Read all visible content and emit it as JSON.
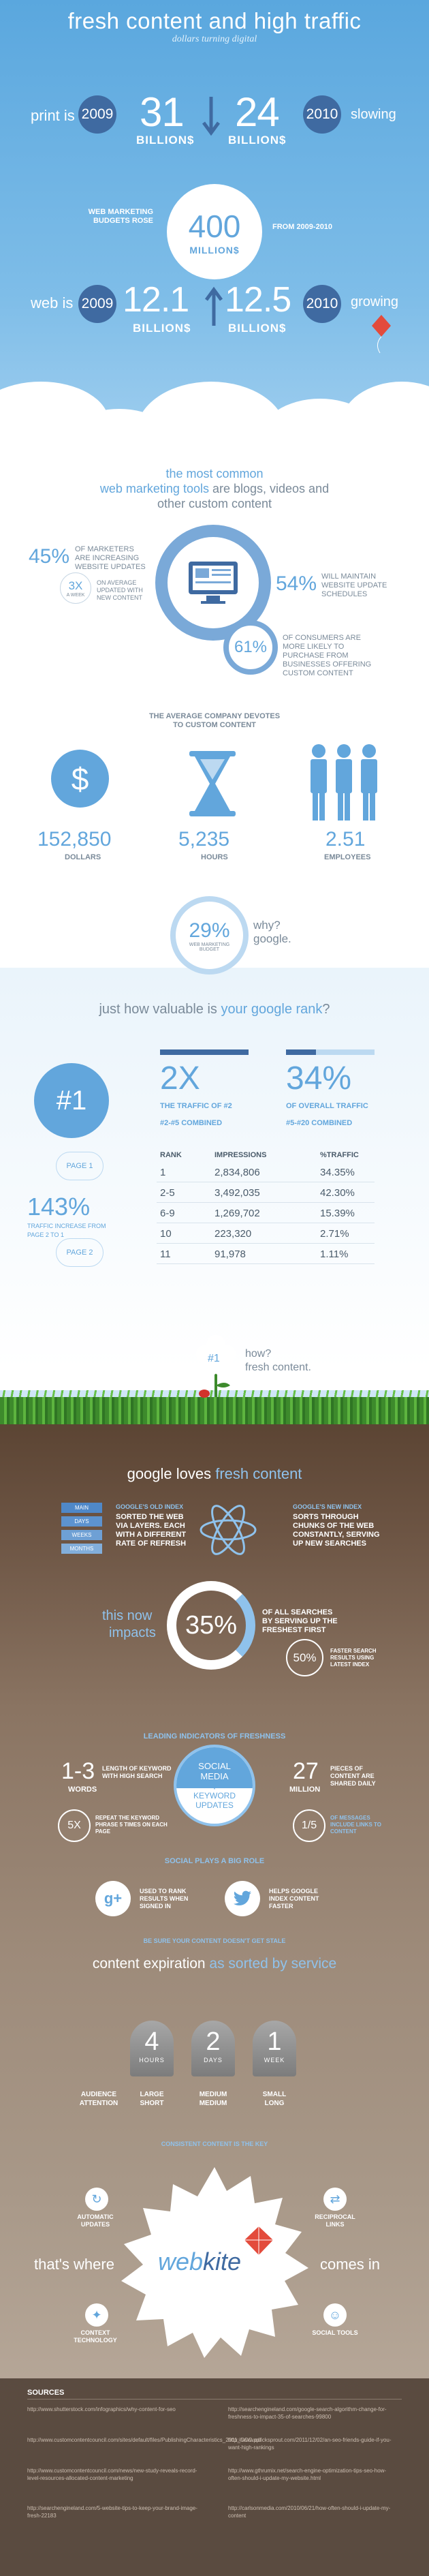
{
  "header": {
    "title": "fresh content and high traffic",
    "subtitle": "dollars turning digital"
  },
  "print": {
    "label": "print is",
    "year_from": "2009",
    "value_from": "31",
    "unit_from": "BILLION$",
    "value_to": "24",
    "unit_to": "BILLION$",
    "year_to": "2010",
    "trend": "slowing"
  },
  "budget": {
    "label": "WEB MARKETING BUDGETS ROSE",
    "value": "400",
    "unit": "MILLION$",
    "period": "FROM 2009-2010"
  },
  "web": {
    "label": "web is",
    "year_from": "2009",
    "value_from": "12.1",
    "unit_from": "BILLION$",
    "value_to": "12.5",
    "unit_to": "BILLION$",
    "year_to": "2010",
    "trend": "growing"
  },
  "tools": {
    "line1_pre": "the most common",
    "line2_hl": "web marketing tools",
    "line2_post": " are blogs, videos and",
    "line3": "other custom content"
  },
  "stats": {
    "s1_value": "45%",
    "s1_label": "OF MARKETERS ARE INCREASING WEBSITE UPDATES",
    "s2_value": "3X",
    "s2_unit": "A WEEK",
    "s2_label": "ON AVERAGE UPDATED WITH NEW CONTENT",
    "s3_value": "54%",
    "s3_label": "WILL MAINTAIN WEBSITE UPDATE SCHEDULES",
    "s4_value": "61%",
    "s4_label": "OF CONSUMERS ARE MORE LIKELY TO PURCHASE FROM BUSINESSES OFFERING CUSTOM CONTENT"
  },
  "devotes": {
    "heading": "THE AVERAGE COMPANY DEVOTES TO CUSTOM CONTENT",
    "dollars_value": "152,850",
    "dollars_label": "DOLLARS",
    "hours_value": "5,235",
    "hours_label": "HOURS",
    "employees_value": "2.51",
    "employees_label": "EMPLOYEES"
  },
  "budget_pct": {
    "value": "29%",
    "label": "WEB MARKETING BUDGET",
    "why": "why?",
    "google": "google."
  },
  "rank": {
    "question_pre": "just how valuable is ",
    "question_hl": "your google rank",
    "question_post": "?",
    "number_one": "#1",
    "twox_value": "2X",
    "twox_label_a": "THE TRAFFIC OF #2",
    "twox_label_b": "#2-#5 COMBINED",
    "pct_value": "34%",
    "pct_label_a": "OF OVERALL TRAFFIC",
    "pct_label_b": "#5-#20 COMBINED",
    "col_rank": "RANK",
    "col_impressions": "IMPRESSIONS",
    "col_traffic": "%TRAFFIC",
    "rows": [
      {
        "rank": "1",
        "impressions": "2,834,806",
        "traffic": "34.35%"
      },
      {
        "rank": "2-5",
        "impressions": "3,492,035",
        "traffic": "42.30%"
      },
      {
        "rank": "6-9",
        "impressions": "1,269,702",
        "traffic": "15.39%"
      },
      {
        "rank": "10",
        "impressions": "223,320",
        "traffic": "2.71%"
      },
      {
        "rank": "11",
        "impressions": "91,978",
        "traffic": "1.11%"
      }
    ],
    "page1": "PAGE 1",
    "page2": "PAGE 2",
    "increase_value": "143%",
    "increase_label": "TRAFFIC INCREASE FROM PAGE 2 TO 1",
    "fresh_num": "#1",
    "how": "how?",
    "fresh_content": "fresh content."
  },
  "loves": {
    "pre": "google loves ",
    "hl": "fresh content",
    "old_title": "GOOGLE'S OLD INDEX",
    "old_text": "SORTED THE WEB VIA LAYERS. EACH WITH A DIFFERENT RATE OF REFRESH",
    "new_title": "GOOGLE'S NEW INDEX",
    "new_text": "SORTS THROUGH CHUNKS OF THE WEB CONSTANTLY, SERVING UP NEW SEARCHES",
    "layers": [
      "MAIN",
      "DAYS",
      "WEEKS",
      "MONTHS"
    ],
    "impact_a": "this now",
    "impact_b": "impacts",
    "impact_value": "35%",
    "impact_label": "OF ALL SEARCHES BY SERVING UP THE FRESHEST FIRST",
    "faster_value": "50%",
    "faster_label": "FASTER SEARCH RESULTS USING LATEST INDEX"
  },
  "freshness": {
    "heading": "LEADING INDICATORS OF FRESHNESS",
    "words_value": "1-3",
    "words_unit": "WORDS",
    "words_label": "LENGTH OF KEYWORD WITH HIGH SEARCH",
    "social_a": "SOCIAL",
    "social_b": "MEDIA",
    "plus": "+",
    "keyword_a": "KEYWORD",
    "keyword_b": "UPDATES",
    "million_value": "27",
    "million_unit": "MILLION",
    "million_label": "PIECES OF CONTENT ARE SHARED DAILY",
    "fivex_value": "5X",
    "fivex_label": "REPEAT THE KEYWORD PHRASE 5 TIMES ON EACH PAGE",
    "fifth_value": "1/5",
    "fifth_label": "OF MESSAGES INCLUDE LINKS TO CONTENT"
  },
  "social": {
    "heading": "SOCIAL PLAYS A BIG ROLE",
    "gplus_label": "USED TO RANK RESULTS WHEN SIGNED IN",
    "twitter_label": "HELPS GOOGLE INDEX CONTENT FASTER",
    "stale": "BE SURE YOUR CONTENT DOESN'T GET STALE"
  },
  "expiration": {
    "pre": "content expiration ",
    "hl": "as sorted by service",
    "tombs": [
      {
        "n": "4",
        "u": "HOURS",
        "a": "AUDIENCE",
        "b": "ATTENTION"
      },
      {
        "n": "2",
        "u": "DAYS",
        "a": "LARGE",
        "b": "SHORT"
      },
      {
        "n": "1",
        "u": "WEEK",
        "a": "MEDIUM",
        "b": "MEDIUM"
      },
      {
        "n": "",
        "u": "",
        "a": "SMALL",
        "b": "LONG"
      }
    ],
    "key": "CONSISTENT CONTENT IS THE KEY"
  },
  "webkite": {
    "thats_where": "that's where",
    "brand_a": "web",
    "brand_b": "kite",
    "comes_in": "comes in",
    "auto": "AUTOMATIC UPDATES",
    "links": "RECIPROCAL LINKS",
    "context": "CONTEXT TECHNOLOGY",
    "tools": "SOCIAL TOOLS"
  },
  "sources": {
    "heading": "SOURCES",
    "items": [
      "http://www.shutterstock.com/infographics/why-content-for-seo",
      "http://searchengineland.com/google-search-algorithm-change-for-freshness-to-impact-35-of-searches-99800",
      "http://www.customcontentcouncil.com/sites/default/files/PublishingCharacteristics_2011_CCC.pdf",
      "http://www.quicksprout.com/2011/12/02/an-seo-friends-guide-if-you-want-high-rankings",
      "http://www.customcontentcouncil.com/news/new-study-reveals-record-level-resources-allocated-content-marketing",
      "http://www.gthrumix.net/search-engine-optimization-tips-seo-how-often-should-i-update-my-website.html",
      "http://searchengineland.com/5-website-tips-to-keep-your-brand-image-fresh-22183",
      "http://carlsonmedia.com/2010/06/21/how-often-should-i-update-my-content"
    ]
  },
  "colors": {
    "accent": "#62a6dc",
    "dark_blue": "#3f6aa1",
    "sky": "#5aa7de"
  }
}
